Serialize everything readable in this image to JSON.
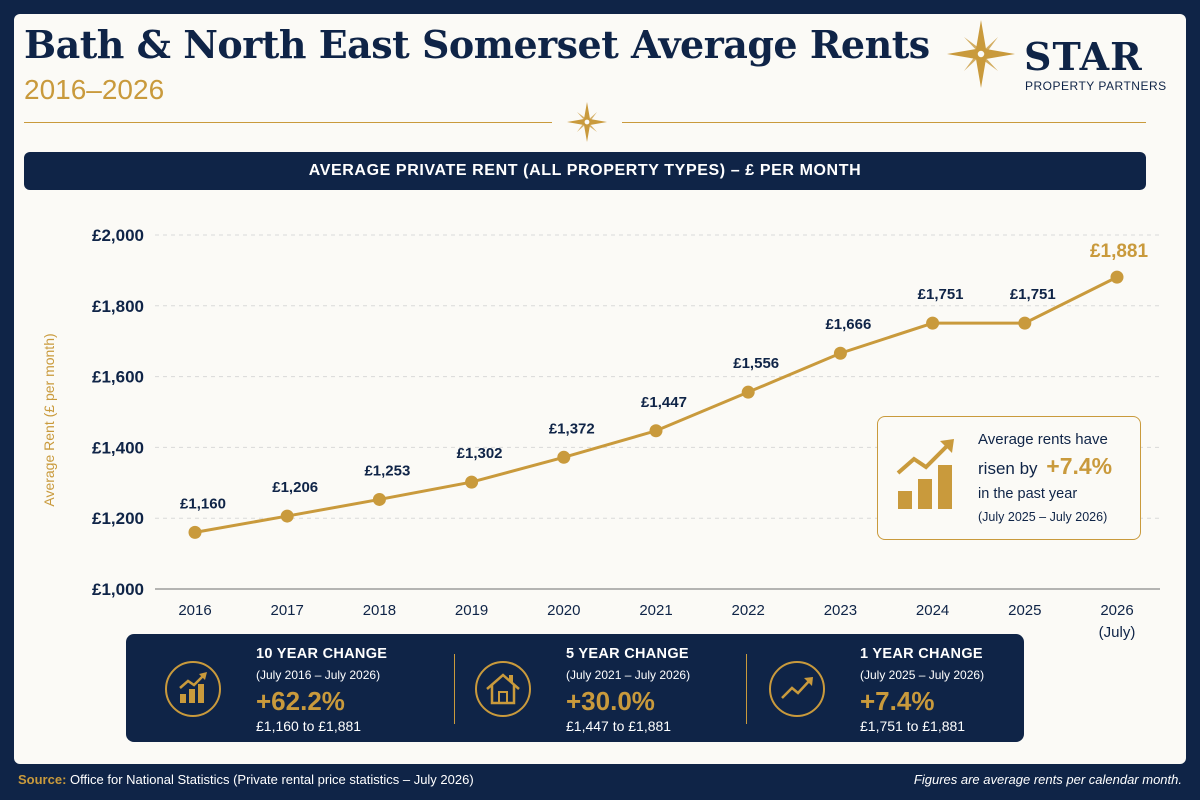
{
  "header": {
    "title": "Bath & North East Somerset Average Rents",
    "subtitle": "2016–2026",
    "logo_main": "STAR",
    "logo_sub": "PROPERTY PARTNERS"
  },
  "banner": "AVERAGE PRIVATE RENT (ALL PROPERTY TYPES) – £ PER MONTH",
  "chart_data": {
    "type": "line",
    "title": "AVERAGE PRIVATE RENT (ALL PROPERTY TYPES) – £ PER MONTH",
    "ylabel": "Average Rent (£ per month)",
    "xlabel": "",
    "categories": [
      "2016",
      "2017",
      "2018",
      "2019",
      "2020",
      "2021",
      "2022",
      "2023",
      "2024",
      "2025",
      "2026"
    ],
    "category_sublabels": [
      "",
      "",
      "",
      "",
      "",
      "",
      "",
      "",
      "",
      "",
      "(July)"
    ],
    "values": [
      1160,
      1206,
      1253,
      1302,
      1372,
      1447,
      1556,
      1666,
      1751,
      1751,
      1881
    ],
    "data_labels": [
      "£1,160",
      "£1,206",
      "£1,253",
      "£1,302",
      "£1,372",
      "£1,447",
      "£1,556",
      "£1,666",
      "£1,751",
      "£1,751",
      "£1,881"
    ],
    "ylim": [
      1000,
      2000
    ],
    "yticks": [
      1000,
      1200,
      1400,
      1600,
      1800,
      2000
    ],
    "ytick_labels": [
      "£1,000",
      "£1,200",
      "£1,400",
      "£1,600",
      "£1,800",
      "£2,000"
    ],
    "grid": true,
    "line_color": "#c99a3c",
    "text_color": "#0f2447"
  },
  "callout": {
    "line1": "Average rents have",
    "line2_prefix": "risen by",
    "line2_value": "+7.4%",
    "line3": "in the past year",
    "line4": "(July 2025 – July 2026)",
    "icon": "bar-chart-rising-arrow-icon"
  },
  "stats": [
    {
      "heading": "10 YEAR CHANGE",
      "period": "(July 2016 – July 2026)",
      "value": "+62.2%",
      "range": "£1,160 to £1,881",
      "icon": "bar-chart-arrow-icon"
    },
    {
      "heading": "5 YEAR CHANGE",
      "period": "(July 2021 – July 2026)",
      "value": "+30.0%",
      "range": "£1,447 to £1,881",
      "icon": "house-icon"
    },
    {
      "heading": "1 YEAR CHANGE",
      "period": "(July 2025 – July 2026)",
      "value": "+7.4%",
      "range": "£1,751 to £1,881",
      "icon": "trend-up-icon"
    }
  ],
  "footer": {
    "source_label": "Source:",
    "source_text": "Office for National Statistics (Private rental price statistics – July 2026)",
    "note": "Figures are average rents per calendar month."
  },
  "colors": {
    "navy": "#0f2447",
    "gold": "#c99a3c",
    "background": "#fbfaf6"
  }
}
